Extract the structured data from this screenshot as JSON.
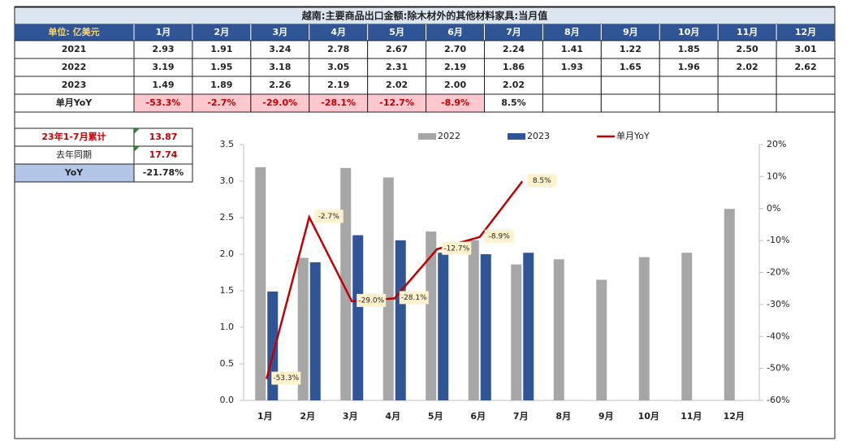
{
  "table": {
    "title": "越南:主要商品出口金额:除木材外的其他材料家具:当月值",
    "unit_label": "单位: 亿美元",
    "rows": [
      [
        "2021",
        "2.93",
        "1.91",
        "3.24",
        "2.78",
        "2.67",
        "2.70",
        "2.24",
        "1.41",
        "1.22",
        "1.85",
        "2.50",
        "3.01"
      ],
      [
        "2022",
        "3.19",
        "1.95",
        "3.18",
        "3.05",
        "2.31",
        "2.19",
        "1.86",
        "1.93",
        "1.65",
        "1.96",
        "2.02",
        "2.62"
      ],
      [
        "2023",
        "1.49",
        "1.89",
        "2.26",
        "2.19",
        "2.02",
        "2.00",
        "2.02"
      ],
      [
        "单月YoY",
        "-53.3%",
        "-2.7%",
        "-29.0%",
        "-28.1%",
        "-12.7%",
        "-8.9%",
        "8.5%"
      ]
    ]
  },
  "summary": {
    "rows": [
      [
        "23年1-7月累计",
        "13.87"
      ],
      [
        "去年同期",
        "17.74"
      ],
      [
        "YoY",
        "-21.78%"
      ]
    ]
  },
  "chart_data": {
    "type": "bar_line",
    "categories": [
      "1月",
      "2月",
      "3月",
      "4月",
      "5月",
      "6月",
      "7月",
      "8月",
      "9月",
      "10月",
      "11月",
      "12月"
    ],
    "series": [
      {
        "name": "2022",
        "color": "#a6a6a6",
        "values": [
          3.19,
          1.95,
          3.18,
          3.05,
          2.31,
          2.19,
          1.86,
          1.93,
          1.65,
          1.96,
          2.02,
          2.62
        ]
      },
      {
        "name": "2023",
        "color": "#2f5597",
        "values": [
          1.49,
          1.89,
          2.26,
          2.19,
          2.02,
          2.0,
          2.02,
          null,
          null,
          null,
          null,
          null
        ]
      },
      {
        "name": "单月YoY",
        "color": "#c00000",
        "axis": "y2",
        "type": "line",
        "values": [
          -53.3,
          -2.7,
          -29.0,
          -28.1,
          -12.7,
          -8.9,
          8.5,
          null,
          null,
          null,
          null,
          null
        ],
        "value_labels": [
          "-53.3%",
          "-2.7%",
          "-29.0%",
          "-28.1%",
          "-12.7%",
          "-8.9%",
          "8.5%",
          null,
          null,
          null,
          null,
          null
        ]
      }
    ],
    "ylim": [
      0,
      3.5
    ],
    "yticks": [
      {
        "value": 0,
        "label": "0.0"
      },
      0.5,
      {
        "value": 1,
        "label": "1.0"
      },
      1.5,
      {
        "value": 2,
        "label": "2.0"
      },
      2.5,
      {
        "value": 3,
        "label": "3.0"
      },
      3.5
    ],
    "y2lim": [
      -60,
      20
    ],
    "y2ticks": [
      {
        "value": -60,
        "label": "-60%"
      },
      {
        "value": -50,
        "label": "-50%"
      },
      {
        "value": -40,
        "label": "-40%"
      },
      {
        "value": -30,
        "label": "-30%"
      },
      {
        "value": -20,
        "label": "-20%"
      },
      {
        "value": -10,
        "label": "-10%"
      },
      {
        "value": 0,
        "label": "0%"
      },
      {
        "value": 10,
        "label": "10%"
      },
      {
        "value": 20,
        "label": "20%"
      }
    ],
    "legend": "top",
    "grid": false
  }
}
